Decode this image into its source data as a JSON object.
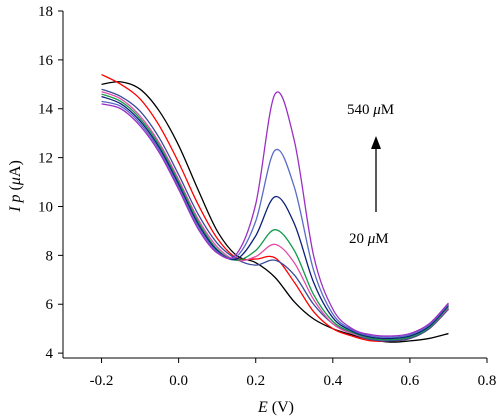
{
  "chart_data": {
    "type": "line",
    "xlabel": "E (V)",
    "ylabel": "Ip (μA)",
    "xlabel_parts": {
      "var": "E",
      "unit": " (V)"
    },
    "ylabel_parts": {
      "var": "I p",
      "unit_open": " (",
      "unit_mu": "μ",
      "unit_close": "A)"
    },
    "xlim": [
      -0.3,
      0.8
    ],
    "ylim": [
      3.8,
      18
    ],
    "xticks": [
      -0.2,
      0.0,
      0.2,
      0.4,
      0.6,
      0.8
    ],
    "xtick_labels": [
      "-0.2",
      "0.0",
      "0.2",
      "0.4",
      "0.6",
      "0.8"
    ],
    "yticks": [
      4,
      6,
      8,
      10,
      12,
      14,
      16,
      18
    ],
    "ytick_labels": [
      "4",
      "6",
      "8",
      "10",
      "12",
      "14",
      "16",
      "18"
    ],
    "grid": false,
    "annotations": {
      "top": {
        "num": "540 ",
        "mu": "μ",
        "unit": "M"
      },
      "bottom": {
        "num": "20 ",
        "mu": "μ",
        "unit": "M"
      },
      "arrow": "up"
    },
    "series": [
      {
        "color": "#000000",
        "x": [
          -0.2,
          -0.15,
          -0.1,
          -0.05,
          0.0,
          0.05,
          0.1,
          0.15,
          0.2,
          0.25,
          0.3,
          0.35,
          0.4,
          0.45,
          0.5,
          0.55,
          0.6,
          0.65,
          0.7
        ],
        "y": [
          15.0,
          15.1,
          14.8,
          13.9,
          12.5,
          10.7,
          9.0,
          8.0,
          7.7,
          7.1,
          6.1,
          5.4,
          5.0,
          4.75,
          4.55,
          4.45,
          4.5,
          4.6,
          4.8
        ]
      },
      {
        "color": "#ff0000",
        "x": [
          -0.2,
          -0.15,
          -0.1,
          -0.05,
          0.0,
          0.05,
          0.1,
          0.15,
          0.2,
          0.25,
          0.3,
          0.35,
          0.4,
          0.45,
          0.5,
          0.55,
          0.6,
          0.65,
          0.7
        ],
        "y": [
          15.4,
          15.0,
          14.4,
          13.3,
          11.8,
          10.1,
          8.7,
          7.9,
          7.85,
          7.9,
          6.9,
          5.7,
          5.0,
          4.7,
          4.5,
          4.5,
          4.6,
          5.0,
          5.8
        ]
      },
      {
        "color": "#3a4a9a",
        "x": [
          -0.2,
          -0.15,
          -0.1,
          -0.05,
          0.0,
          0.05,
          0.1,
          0.15,
          0.2,
          0.25,
          0.3,
          0.35,
          0.4,
          0.45,
          0.5,
          0.55,
          0.6,
          0.65,
          0.7
        ],
        "y": [
          14.8,
          14.5,
          13.9,
          12.8,
          11.3,
          9.7,
          8.5,
          7.85,
          7.6,
          7.8,
          7.2,
          6.0,
          5.2,
          4.8,
          4.55,
          4.5,
          4.6,
          5.0,
          5.8
        ]
      },
      {
        "color": "#e14eaa",
        "x": [
          -0.2,
          -0.15,
          -0.1,
          -0.05,
          0.0,
          0.05,
          0.1,
          0.15,
          0.2,
          0.25,
          0.3,
          0.35,
          0.4,
          0.45,
          0.5,
          0.55,
          0.6,
          0.65,
          0.7
        ],
        "y": [
          14.7,
          14.4,
          13.7,
          12.6,
          11.1,
          9.5,
          8.35,
          7.8,
          7.95,
          8.45,
          7.7,
          6.2,
          5.2,
          4.8,
          4.6,
          4.55,
          4.65,
          5.05,
          5.85
        ]
      },
      {
        "color": "#139a4a",
        "x": [
          -0.2,
          -0.15,
          -0.1,
          -0.05,
          0.0,
          0.05,
          0.1,
          0.15,
          0.2,
          0.25,
          0.3,
          0.35,
          0.4,
          0.45,
          0.5,
          0.55,
          0.6,
          0.65,
          0.7
        ],
        "y": [
          14.6,
          14.3,
          13.6,
          12.5,
          11.0,
          9.4,
          8.25,
          7.8,
          8.2,
          9.05,
          8.2,
          6.4,
          5.3,
          4.85,
          4.6,
          4.55,
          4.65,
          5.05,
          5.9
        ]
      },
      {
        "color": "#0a1f78",
        "x": [
          -0.2,
          -0.15,
          -0.1,
          -0.05,
          0.0,
          0.05,
          0.1,
          0.15,
          0.2,
          0.25,
          0.3,
          0.35,
          0.4,
          0.45,
          0.5,
          0.55,
          0.6,
          0.65,
          0.7
        ],
        "y": [
          14.5,
          14.2,
          13.5,
          12.4,
          10.9,
          9.3,
          8.2,
          7.85,
          8.8,
          10.4,
          9.3,
          6.9,
          5.45,
          4.9,
          4.65,
          4.6,
          4.7,
          5.1,
          5.95
        ]
      },
      {
        "color": "#5a6ac8",
        "x": [
          -0.2,
          -0.15,
          -0.1,
          -0.05,
          0.0,
          0.05,
          0.1,
          0.15,
          0.2,
          0.25,
          0.3,
          0.35,
          0.4,
          0.45,
          0.5,
          0.55,
          0.6,
          0.65,
          0.7
        ],
        "y": [
          14.3,
          14.1,
          13.4,
          12.3,
          10.8,
          9.2,
          8.15,
          7.95,
          9.4,
          12.3,
          10.8,
          7.4,
          5.6,
          4.95,
          4.7,
          4.65,
          4.75,
          5.15,
          6.0
        ]
      },
      {
        "color": "#9b2fc4",
        "x": [
          -0.2,
          -0.15,
          -0.1,
          -0.05,
          0.0,
          0.05,
          0.1,
          0.15,
          0.2,
          0.25,
          0.3,
          0.35,
          0.4,
          0.45,
          0.5,
          0.55,
          0.6,
          0.65,
          0.7
        ],
        "y": [
          14.2,
          14.0,
          13.3,
          12.2,
          10.7,
          9.1,
          8.1,
          8.05,
          10.1,
          14.6,
          12.7,
          8.0,
          5.8,
          5.0,
          4.75,
          4.7,
          4.8,
          5.2,
          6.05
        ]
      }
    ]
  }
}
